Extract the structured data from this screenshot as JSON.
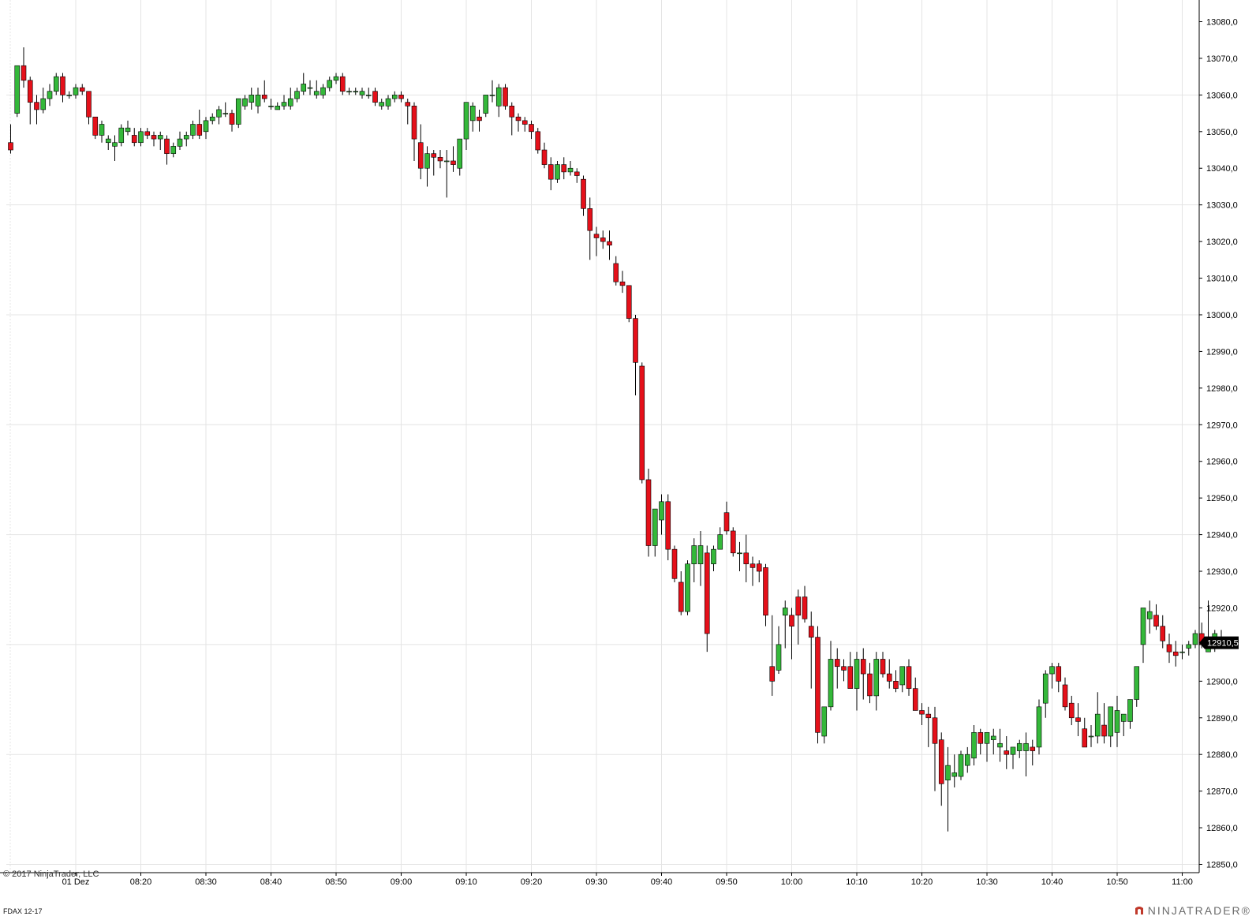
{
  "footer": {
    "copyright": "© 2017 NinjaTrader, LLC",
    "instrument": "FDAX 12-17",
    "brand": "NINJATRADER®"
  },
  "colors": {
    "up": "#34b83a",
    "down": "#e5101a",
    "grid": "#e4e4e4",
    "axis": "#000000",
    "price_marker_bg": "#000000",
    "price_marker_text": "#ffffff"
  },
  "chart_data": {
    "type": "candlestick",
    "title": "",
    "xlabel": "",
    "ylabel": "",
    "ylim": [
      12843,
      13083
    ],
    "grid": true,
    "y_ticks": [
      "13080,0",
      "13070,0",
      "13060,0",
      "13050,0",
      "13040,0",
      "13030,0",
      "13020,0",
      "13010,0",
      "13000,0",
      "12990,0",
      "12980,0",
      "12970,0",
      "12960,0",
      "12950,0",
      "12940,0",
      "12930,0",
      "12920,0",
      "12910,0",
      "12900,0",
      "12890,0",
      "12880,0",
      "12870,0",
      "12860,0",
      "12850,0"
    ],
    "x_ticks": [
      {
        "label": "01 Dez",
        "minute": 10
      },
      {
        "label": "08:20",
        "minute": 20
      },
      {
        "label": "08:30",
        "minute": 30
      },
      {
        "label": "08:40",
        "minute": 40
      },
      {
        "label": "08:50",
        "minute": 50
      },
      {
        "label": "09:00",
        "minute": 60
      },
      {
        "label": "09:10",
        "minute": 70
      },
      {
        "label": "09:20",
        "minute": 80
      },
      {
        "label": "09:30",
        "minute": 90
      },
      {
        "label": "09:40",
        "minute": 100
      },
      {
        "label": "09:50",
        "minute": 110
      },
      {
        "label": "10:00",
        "minute": 120
      },
      {
        "label": "10:10",
        "minute": 130
      },
      {
        "label": "10:20",
        "minute": 140
      },
      {
        "label": "10:30",
        "minute": 150
      },
      {
        "label": "10:40",
        "minute": 160
      },
      {
        "label": "10:50",
        "minute": 170
      },
      {
        "label": "11:00",
        "minute": 180
      }
    ],
    "last_price": "12910,5",
    "candle_minutes": 1,
    "start_time": "08:00",
    "candles": [
      [
        13047,
        13052,
        13044,
        13045
      ],
      [
        13055,
        13068,
        13054,
        13068
      ],
      [
        13068,
        13073,
        13062,
        13064
      ],
      [
        13064,
        13065,
        13052,
        13058
      ],
      [
        13058,
        13060,
        13052,
        13056
      ],
      [
        13056,
        13062,
        13055,
        13059
      ],
      [
        13059,
        13063,
        13057,
        13061
      ],
      [
        13061,
        13066,
        13060,
        13065
      ],
      [
        13065,
        13066,
        13058,
        13060
      ],
      [
        13060,
        13061,
        13059,
        13060
      ],
      [
        13060,
        13063,
        13059,
        13062
      ],
      [
        13062,
        13063,
        13060,
        13061
      ],
      [
        13061,
        13061,
        13052,
        13054
      ],
      [
        13054,
        13054,
        13048,
        13049
      ],
      [
        13049,
        13053,
        13047,
        13052
      ],
      [
        13047,
        13049,
        13045,
        13048
      ],
      [
        13046,
        13049,
        13042,
        13047
      ],
      [
        13047,
        13052,
        13046,
        13051
      ],
      [
        13050,
        13053,
        13049,
        13051
      ],
      [
        13049,
        13051,
        13046,
        13047
      ],
      [
        13047,
        13051,
        13046,
        13050
      ],
      [
        13050,
        13051,
        13048,
        13049
      ],
      [
        13049,
        13050,
        13046,
        13048
      ],
      [
        13048,
        13050,
        13045,
        13049
      ],
      [
        13048,
        13049,
        13041,
        13044
      ],
      [
        13044,
        13047,
        13043,
        13046
      ],
      [
        13046,
        13050,
        13045,
        13048
      ],
      [
        13048,
        13050,
        13046,
        13049
      ],
      [
        13049,
        13053,
        13048,
        13052
      ],
      [
        13052,
        13056,
        13048,
        13049
      ],
      [
        13050,
        13054,
        13048,
        13053
      ],
      [
        13053,
        13055,
        13052,
        13054
      ],
      [
        13054,
        13057,
        13052,
        13056
      ],
      [
        13055,
        13058,
        13054,
        13055
      ],
      [
        13055,
        13056,
        13050,
        13052
      ],
      [
        13052,
        13059,
        13051,
        13059
      ],
      [
        13057,
        13060,
        13056,
        13059
      ],
      [
        13058,
        13062,
        13056,
        13060
      ],
      [
        13057,
        13062,
        13055,
        13060
      ],
      [
        13060,
        13064,
        13058,
        13059
      ],
      [
        13057,
        13059,
        13056,
        13057
      ],
      [
        13056,
        13058,
        13056,
        13057
      ],
      [
        13057,
        13060,
        13056,
        13058
      ],
      [
        13057,
        13062,
        13056,
        13059
      ],
      [
        13059,
        13062,
        13058,
        13061
      ],
      [
        13061,
        13066,
        13060,
        13063
      ],
      [
        13062,
        13064,
        13060,
        13062
      ],
      [
        13060,
        13064,
        13059,
        13061
      ],
      [
        13060,
        13063,
        13059,
        13062
      ],
      [
        13062,
        13065,
        13061,
        13064
      ],
      [
        13064,
        13066,
        13063,
        13065
      ],
      [
        13065,
        13066,
        13060,
        13061
      ],
      [
        13061,
        13062,
        13060,
        13061
      ],
      [
        13061,
        13062,
        13060,
        13061
      ],
      [
        13060,
        13062,
        13059,
        13061
      ],
      [
        13060,
        13062,
        13059,
        13060
      ],
      [
        13061,
        13062,
        13057,
        13058
      ],
      [
        13057,
        13059,
        13056,
        13058
      ],
      [
        13057,
        13060,
        13056,
        13059
      ],
      [
        13059,
        13061,
        13058,
        13060
      ],
      [
        13060,
        13061,
        13058,
        13059
      ],
      [
        13058,
        13059,
        13052,
        13057
      ],
      [
        13057,
        13058,
        13042,
        13048
      ],
      [
        13047,
        13052,
        13037,
        13040
      ],
      [
        13040,
        13046,
        13035,
        13044
      ],
      [
        13044,
        13045,
        13038,
        13043
      ],
      [
        13043,
        13045,
        13040,
        13042
      ],
      [
        13042,
        13045,
        13032,
        13042
      ],
      [
        13042,
        13046,
        13039,
        13041
      ],
      [
        13040,
        13048,
        13038,
        13048
      ],
      [
        13048,
        13058,
        13045,
        13058
      ],
      [
        13053,
        13058,
        13050,
        13057
      ],
      [
        13054,
        13056,
        13050,
        13053
      ],
      [
        13055,
        13060,
        13054,
        13060
      ],
      [
        13060,
        13064,
        13058,
        13060
      ],
      [
        13057,
        13063,
        13054,
        13062
      ],
      [
        13062,
        13063,
        13056,
        13057
      ],
      [
        13057,
        13058,
        13049,
        13054
      ],
      [
        13054,
        13055,
        13050,
        13053
      ],
      [
        13053,
        13054,
        13050,
        13052
      ],
      [
        13052,
        13053,
        13048,
        13050
      ],
      [
        13050,
        13051,
        13044,
        13045
      ],
      [
        13045,
        13047,
        13040,
        13041
      ],
      [
        13041,
        13043,
        13034,
        13037
      ],
      [
        13037,
        13042,
        13036,
        13041
      ],
      [
        13041,
        13043,
        13037,
        13039
      ],
      [
        13039,
        13042,
        13038,
        13040
      ],
      [
        13039,
        13040,
        13036,
        13038
      ],
      [
        13037,
        13038,
        13027,
        13029
      ],
      [
        13029,
        13032,
        13015,
        13023
      ],
      [
        13022,
        13024,
        13016,
        13021
      ],
      [
        13021,
        13023,
        13018,
        13020
      ],
      [
        13020,
        13023,
        13015,
        13019
      ],
      [
        13014,
        13016,
        13008,
        13009
      ],
      [
        13009,
        13012,
        13006,
        13008
      ],
      [
        13008,
        13008,
        12998,
        12999
      ],
      [
        12999,
        13000,
        12978,
        12987
      ],
      [
        12986,
        12987,
        12954,
        12955
      ],
      [
        12955,
        12958,
        12934,
        12937
      ],
      [
        12937,
        12947,
        12934,
        12947
      ],
      [
        12944,
        12951,
        12940,
        12949
      ],
      [
        12949,
        12951,
        12933,
        12936
      ],
      [
        12936,
        12937,
        12927,
        12928
      ],
      [
        12927,
        12930,
        12918,
        12919
      ],
      [
        12919,
        12933,
        12918,
        12932
      ],
      [
        12932,
        12939,
        12927,
        12937
      ],
      [
        12932,
        12941,
        12926,
        12937
      ],
      [
        12935,
        12937,
        12908,
        12913
      ],
      [
        12932,
        12937,
        12930,
        12936
      ],
      [
        12936,
        12942,
        12936,
        12940
      ],
      [
        12946,
        12949,
        12940,
        12941
      ],
      [
        12941,
        12942,
        12934,
        12935
      ],
      [
        12935,
        12938,
        12930,
        12935
      ],
      [
        12935,
        12940,
        12927,
        12932
      ],
      [
        12932,
        12934,
        12926,
        12931
      ],
      [
        12932,
        12933,
        12927,
        12930
      ],
      [
        12931,
        12932,
        12915,
        12918
      ],
      [
        12904,
        12918,
        12896,
        12900
      ],
      [
        12903,
        12915,
        12902,
        12910
      ],
      [
        12918,
        12922,
        12909,
        12920
      ],
      [
        12918,
        12920,
        12906,
        12915
      ],
      [
        12923,
        12925,
        12910,
        12918
      ],
      [
        12923,
        12926,
        12916,
        12917
      ],
      [
        12915,
        12919,
        12898,
        12912
      ],
      [
        12912,
        12915,
        12883,
        12886
      ],
      [
        12885,
        12893,
        12883,
        12893
      ],
      [
        12893,
        12911,
        12892,
        12906
      ],
      [
        12906,
        12909,
        12898,
        12904
      ],
      [
        12904,
        12906,
        12900,
        12903
      ],
      [
        12904,
        12908,
        12900,
        12898
      ],
      [
        12898,
        12908,
        12892,
        12906
      ],
      [
        12906,
        12909,
        12895,
        12902
      ],
      [
        12902,
        12905,
        12894,
        12896
      ],
      [
        12896,
        12908,
        12892,
        12906
      ],
      [
        12906,
        12908,
        12901,
        12902
      ],
      [
        12902,
        12906,
        12898,
        12900
      ],
      [
        12900,
        12903,
        12897,
        12898
      ],
      [
        12899,
        12903,
        12897,
        12904
      ],
      [
        12904,
        12906,
        12896,
        12898
      ],
      [
        12898,
        12901,
        12892,
        12892
      ],
      [
        12892,
        12894,
        12888,
        12891
      ],
      [
        12891,
        12893,
        12882,
        12890
      ],
      [
        12890,
        12893,
        12870,
        12883
      ],
      [
        12884,
        12886,
        12866,
        12872
      ],
      [
        12873,
        12882,
        12859,
        12877
      ],
      [
        12874,
        12880,
        12871,
        12875
      ],
      [
        12874,
        12881,
        12873,
        12880
      ],
      [
        12877,
        12882,
        12875,
        12880
      ],
      [
        12879,
        12888,
        12877,
        12886
      ],
      [
        12886,
        12887,
        12880,
        12883
      ],
      [
        12883,
        12885,
        12878,
        12886
      ],
      [
        12884,
        12887,
        12880,
        12885
      ],
      [
        12882,
        12887,
        12878,
        12883
      ],
      [
        12881,
        12885,
        12876,
        12880
      ],
      [
        12880,
        12882,
        12876,
        12882
      ],
      [
        12881,
        12884,
        12879,
        12883
      ],
      [
        12881,
        12886,
        12874,
        12883
      ],
      [
        12882,
        12884,
        12877,
        12881
      ],
      [
        12882,
        12895,
        12880,
        12893
      ],
      [
        12894,
        12903,
        12890,
        12902
      ],
      [
        12902,
        12905,
        12898,
        12904
      ],
      [
        12904,
        12905,
        12897,
        12900
      ],
      [
        12899,
        12901,
        12892,
        12893
      ],
      [
        12894,
        12896,
        12888,
        12890
      ],
      [
        12890,
        12894,
        12885,
        12889
      ],
      [
        12887,
        12890,
        12883,
        12882
      ],
      [
        12885,
        12888,
        12882,
        12885
      ],
      [
        12885,
        12897,
        12883,
        12891
      ],
      [
        12888,
        12894,
        12883,
        12885
      ],
      [
        12885,
        12893,
        12882,
        12893
      ],
      [
        12886,
        12896,
        12882,
        12892
      ],
      [
        12889,
        12890,
        12885,
        12891
      ],
      [
        12889,
        12895,
        12887,
        12895
      ],
      [
        12895,
        12902,
        12893,
        12904
      ],
      [
        12910,
        12920,
        12905,
        12920
      ],
      [
        12917,
        12922,
        12913,
        12919
      ],
      [
        12918,
        12921,
        12914,
        12915
      ],
      [
        12915,
        12918,
        12909,
        12911
      ],
      [
        12910,
        12913,
        12905,
        12908
      ],
      [
        12908,
        12911,
        12904,
        12907
      ],
      [
        12908,
        12910,
        12906,
        12908
      ],
      [
        12909,
        12911,
        12907,
        12910
      ],
      [
        12910,
        12914,
        12909,
        12913
      ],
      [
        12913,
        12916,
        12909,
        12910
      ],
      [
        12908,
        12922,
        12908,
        12912
      ],
      [
        12912,
        12914,
        12908,
        12913
      ],
      [
        12912,
        12914,
        12910,
        12910
      ]
    ]
  }
}
